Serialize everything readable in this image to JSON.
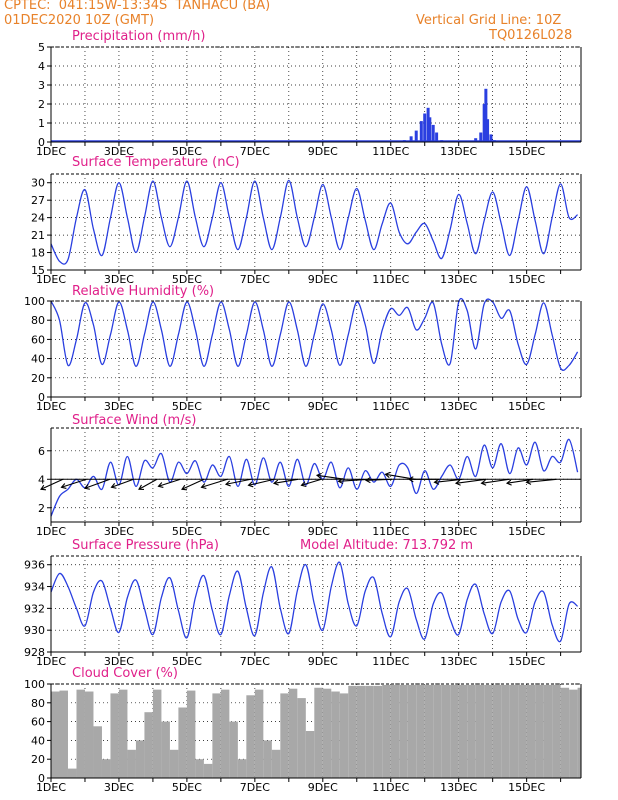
{
  "header": {
    "line1": "CPTEC:  041:15W-13:34S  TANHACU (BA)",
    "line2": "01DEC2020 10Z (GMT)",
    "grid_note": "Vertical Grid Line: 10Z",
    "code": "TQ0126L028"
  },
  "colors": {
    "header": "#e8822a",
    "title": "#e0208a",
    "line": "#2a3fe0",
    "cloud": "#a8a8a8",
    "wind_arrow": "#000000"
  },
  "x_ticks": [
    "1DEC",
    "3DEC",
    "5DEC",
    "7DEC",
    "9DEC",
    "11DEC",
    "13DEC",
    "15DEC"
  ],
  "panels": {
    "precip": {
      "title": "Precipitation (mm/h)"
    },
    "temp": {
      "title": "Surface Temperature (nC)"
    },
    "rh": {
      "title": "Relative Humidity (%)"
    },
    "wind": {
      "title": "Surface Wind (m/s)"
    },
    "pres": {
      "title": "Surface Pressure (hPa)",
      "altitude": "Model Altitude: 713.792 m"
    },
    "cloud": {
      "title": "Cloud Cover (%)"
    }
  },
  "chart_data": [
    {
      "type": "bar",
      "title": "Precipitation (mm/h)",
      "x_unit": "days since 01DEC2020 10Z",
      "ylim": [
        0,
        5
      ],
      "yticks": [
        0,
        1,
        2,
        3,
        4,
        5
      ],
      "x": [
        10.4,
        10.6,
        10.75,
        10.9,
        11.0,
        11.1,
        11.15,
        11.25,
        11.35,
        11.5,
        12.5,
        12.65,
        12.75,
        12.8,
        12.85,
        12.95,
        13.05
      ],
      "values": [
        0.1,
        0.3,
        0.6,
        1.1,
        1.5,
        1.8,
        1.3,
        0.9,
        0.5,
        0.1,
        0.2,
        0.5,
        2.0,
        2.8,
        1.2,
        0.4,
        0.1
      ]
    },
    {
      "type": "line",
      "title": "Surface Temperature (nC)",
      "x_unit": "days since 01DEC2020 10Z",
      "ylim": [
        15,
        31.5
      ],
      "yticks": [
        15,
        18,
        21,
        24,
        27,
        30
      ],
      "x": [
        0,
        0.25,
        0.5,
        0.75,
        1,
        1.25,
        1.5,
        1.75,
        2,
        2.25,
        2.5,
        2.75,
        3,
        3.25,
        3.5,
        3.75,
        4,
        4.25,
        4.5,
        4.75,
        5,
        5.25,
        5.5,
        5.75,
        6,
        6.25,
        6.5,
        6.75,
        7,
        7.25,
        7.5,
        7.75,
        8,
        8.25,
        8.5,
        8.75,
        9,
        9.25,
        9.5,
        9.75,
        10,
        10.25,
        10.5,
        10.75,
        11,
        11.25,
        11.5,
        11.75,
        12,
        12.25,
        12.5,
        12.75,
        13,
        13.25,
        13.5,
        13.75,
        14,
        14.25,
        14.5,
        14.75,
        15,
        15.25,
        15.5
      ],
      "values": [
        19.5,
        16.5,
        16.8,
        24,
        28.8,
        22,
        17.5,
        24,
        30,
        24,
        18,
        24,
        30.3,
        24,
        19,
        24,
        30.3,
        24,
        19,
        24,
        30,
        24,
        18.5,
        24,
        30.3,
        24,
        18.5,
        24,
        30.4,
        24,
        19,
        24,
        29.7,
        24,
        18.5,
        24,
        29,
        23.5,
        18.5,
        23,
        26.5,
        21.5,
        19.5,
        21.5,
        23,
        20,
        17,
        22,
        28,
        23,
        17.8,
        23.5,
        28.4,
        23,
        17.5,
        23.5,
        29.3,
        23.5,
        17.8,
        24,
        29.8,
        24,
        24.5
      ]
    },
    {
      "type": "line",
      "title": "Relative Humidity (%)",
      "x_unit": "days since 01DEC2020 10Z",
      "ylim": [
        0,
        100
      ],
      "yticks": [
        0,
        20,
        40,
        60,
        80,
        100
      ],
      "x": [
        0,
        0.25,
        0.5,
        0.75,
        1,
        1.25,
        1.5,
        1.75,
        2,
        2.25,
        2.5,
        2.75,
        3,
        3.25,
        3.5,
        3.75,
        4,
        4.25,
        4.5,
        4.75,
        5,
        5.25,
        5.5,
        5.75,
        6,
        6.25,
        6.5,
        6.75,
        7,
        7.25,
        7.5,
        7.75,
        8,
        8.25,
        8.5,
        8.75,
        9,
        9.25,
        9.5,
        9.75,
        10,
        10.25,
        10.5,
        10.75,
        11,
        11.25,
        11.5,
        11.75,
        12,
        12.25,
        12.5,
        12.75,
        13,
        13.25,
        13.5,
        13.75,
        14,
        14.25,
        14.5,
        14.75,
        15,
        15.25,
        15.5
      ],
      "values": [
        100,
        80,
        33,
        60,
        98,
        75,
        34,
        65,
        99,
        70,
        32,
        65,
        99,
        70,
        32,
        65,
        99,
        70,
        32,
        65,
        99,
        70,
        32,
        65,
        99,
        70,
        32,
        65,
        99,
        70,
        32,
        65,
        97,
        70,
        33,
        65,
        99,
        75,
        35,
        70,
        92,
        85,
        93,
        70,
        82,
        98,
        55,
        35,
        99,
        90,
        50,
        97,
        99,
        82,
        90,
        55,
        34,
        65,
        98,
        65,
        30,
        33,
        47
      ]
    },
    {
      "type": "line",
      "title": "Surface Wind (m/s)",
      "x_unit": "days since 01DEC2020 10Z",
      "ylim": [
        1,
        7.6
      ],
      "yticks": [
        2,
        4,
        6
      ],
      "x": [
        0,
        0.25,
        0.5,
        0.75,
        1,
        1.25,
        1.5,
        1.75,
        2,
        2.25,
        2.5,
        2.75,
        3,
        3.25,
        3.5,
        3.75,
        4,
        4.25,
        4.5,
        4.75,
        5,
        5.25,
        5.5,
        5.75,
        6,
        6.25,
        6.5,
        6.75,
        7,
        7.25,
        7.5,
        7.75,
        8,
        8.25,
        8.5,
        8.75,
        9,
        9.25,
        9.5,
        9.75,
        10,
        10.25,
        10.5,
        10.75,
        11,
        11.25,
        11.5,
        11.75,
        12,
        12.25,
        12.5,
        12.75,
        13,
        13.25,
        13.5,
        13.75,
        14,
        14.25,
        14.5,
        14.75,
        15,
        15.25,
        15.5
      ],
      "values": [
        1.4,
        2.8,
        3.3,
        4.0,
        3.4,
        4.2,
        3.3,
        5.2,
        3.6,
        5.6,
        3.5,
        5.3,
        4.8,
        5.8,
        3.8,
        5.2,
        4.4,
        5.3,
        3.8,
        5.0,
        4.2,
        5.6,
        3.5,
        5.4,
        3.6,
        5.5,
        3.8,
        5.2,
        3.5,
        5.4,
        3.6,
        5.1,
        4.0,
        5.2,
        3.4,
        4.8,
        3.3,
        4.6,
        3.8,
        4.5,
        3.5,
        5.0,
        4.8,
        3.0,
        4.6,
        3.3,
        4.2,
        5.0,
        4.0,
        5.6,
        4.2,
        6.4,
        4.8,
        6.5,
        4.4,
        6.2,
        5.0,
        6.6,
        4.6,
        5.6,
        5.2,
        6.8,
        4.5
      ]
    },
    {
      "type": "line",
      "title": "Surface Pressure (hPa)",
      "x_unit": "days since 01DEC2020 10Z",
      "ylim": [
        928,
        936.8
      ],
      "yticks": [
        928,
        930,
        932,
        934,
        936
      ],
      "x": [
        0,
        0.25,
        0.5,
        0.75,
        1,
        1.25,
        1.5,
        1.75,
        2,
        2.25,
        2.5,
        2.75,
        3,
        3.25,
        3.5,
        3.75,
        4,
        4.25,
        4.5,
        4.75,
        5,
        5.25,
        5.5,
        5.75,
        6,
        6.25,
        6.5,
        6.75,
        7,
        7.25,
        7.5,
        7.75,
        8,
        8.25,
        8.5,
        8.75,
        9,
        9.25,
        9.5,
        9.75,
        10,
        10.25,
        10.5,
        10.75,
        11,
        11.25,
        11.5,
        11.75,
        12,
        12.25,
        12.5,
        12.75,
        13,
        13.25,
        13.5,
        13.75,
        14,
        14.25,
        14.5,
        14.75,
        15,
        15.25,
        15.5
      ],
      "values": [
        933.5,
        935.2,
        934,
        932,
        930.4,
        933.5,
        934.5,
        932,
        929.8,
        933,
        934.6,
        932,
        929.6,
        933,
        934.8,
        931.8,
        929.3,
        933,
        935,
        931.8,
        929.6,
        933.2,
        935.4,
        932,
        929.5,
        933.4,
        935.8,
        932,
        929.7,
        933.6,
        936,
        932.4,
        930,
        934,
        936.2,
        932.4,
        930.4,
        933.6,
        934.8,
        931.5,
        929.4,
        932.6,
        933.8,
        931,
        929.2,
        932.4,
        933.4,
        931,
        929.6,
        932.8,
        934.2,
        931.5,
        929.7,
        932.6,
        933.6,
        931,
        929.8,
        932.6,
        933.5,
        930.5,
        929,
        932.4,
        932.2
      ]
    },
    {
      "type": "area",
      "title": "Cloud Cover (%)",
      "x_unit": "days since 01DEC2020 10Z",
      "ylim": [
        0,
        100
      ],
      "yticks": [
        0,
        20,
        40,
        60,
        80,
        100
      ],
      "x": [
        0,
        0.25,
        0.5,
        0.75,
        1,
        1.25,
        1.5,
        1.75,
        2,
        2.25,
        2.5,
        2.75,
        3,
        3.25,
        3.5,
        3.75,
        4,
        4.25,
        4.5,
        4.75,
        5,
        5.25,
        5.5,
        5.75,
        6,
        6.25,
        6.5,
        6.75,
        7,
        7.25,
        7.5,
        7.75,
        8,
        8.25,
        8.5,
        8.75,
        9,
        9.25,
        9.5,
        9.75,
        10,
        10.25,
        10.5,
        10.75,
        11,
        11.25,
        11.5,
        11.75,
        12,
        12.25,
        12.5,
        12.75,
        13,
        13.25,
        13.5,
        13.75,
        14,
        14.25,
        14.5,
        14.75,
        15,
        15.25,
        15.5
      ],
      "values": [
        92,
        93,
        10,
        94,
        92,
        55,
        20,
        90,
        94,
        30,
        40,
        70,
        94,
        60,
        30,
        75,
        93,
        20,
        15,
        90,
        94,
        60,
        20,
        88,
        94,
        40,
        30,
        90,
        95,
        85,
        50,
        96,
        95,
        92,
        90,
        98,
        98,
        98,
        98,
        99,
        99,
        99,
        99,
        99,
        99,
        99,
        99,
        99,
        99,
        99,
        99,
        99,
        99,
        99,
        99,
        99,
        99,
        99,
        99,
        99,
        96,
        94,
        96
      ]
    }
  ]
}
